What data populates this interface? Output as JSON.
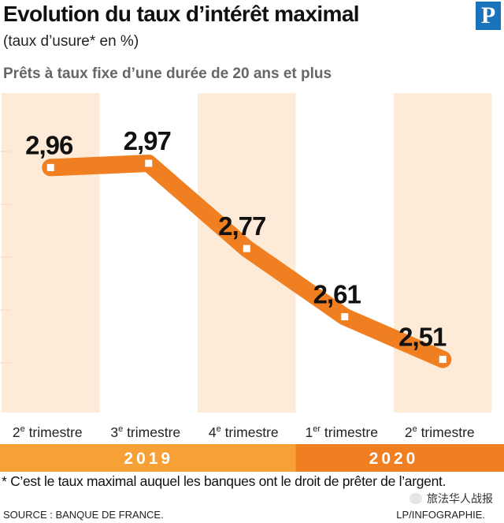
{
  "header": {
    "title": "Evolution du taux d’intérêt maximal",
    "subtitle": "(taux d’usure* en %)",
    "section": "Prêts à taux fixe d’une durée de 20 ans et plus",
    "logo_letter": "P"
  },
  "footer": {
    "note": "* C’est le taux maximal auquel les banques ont le droit de prêter de l’argent.",
    "source": "SOURCE : BANQUE DE FRANCE.",
    "credit": "LP/INFOGRAPHIE.",
    "watermark": "旅法华人战报"
  },
  "colors": {
    "line": "#f07f22",
    "band": "#fdebd7",
    "year_2019": "#f6a035",
    "year_2020": "#f07f22"
  },
  "chart_data": {
    "type": "line",
    "title": "Evolution du taux d’intérêt maximal",
    "ylabel": "taux d’usure* en %",
    "ylim": [
      2.45,
      3.02
    ],
    "grid": false,
    "categories": [
      {
        "num": "2",
        "sup": "e",
        "text": " trimestre",
        "year": "2019"
      },
      {
        "num": "3",
        "sup": "e",
        "text": " trimestre",
        "year": "2019"
      },
      {
        "num": "4",
        "sup": "e",
        "text": " trimestre",
        "year": "2019"
      },
      {
        "num": "1",
        "sup": "er",
        "text": " trimestre",
        "year": "2020"
      },
      {
        "num": "2",
        "sup": "e",
        "text": " trimestre",
        "year": "2020"
      }
    ],
    "series": [
      {
        "name": "Taux d’usure",
        "values": [
          2.96,
          2.97,
          2.77,
          2.61,
          2.51
        ],
        "labels": [
          "2,96",
          "2,97",
          "2,77",
          "2,61",
          "2,51"
        ]
      }
    ],
    "year_bands": [
      {
        "label": "2019",
        "from": 0,
        "to": 2
      },
      {
        "label": "2020",
        "from": 3,
        "to": 4
      }
    ]
  }
}
